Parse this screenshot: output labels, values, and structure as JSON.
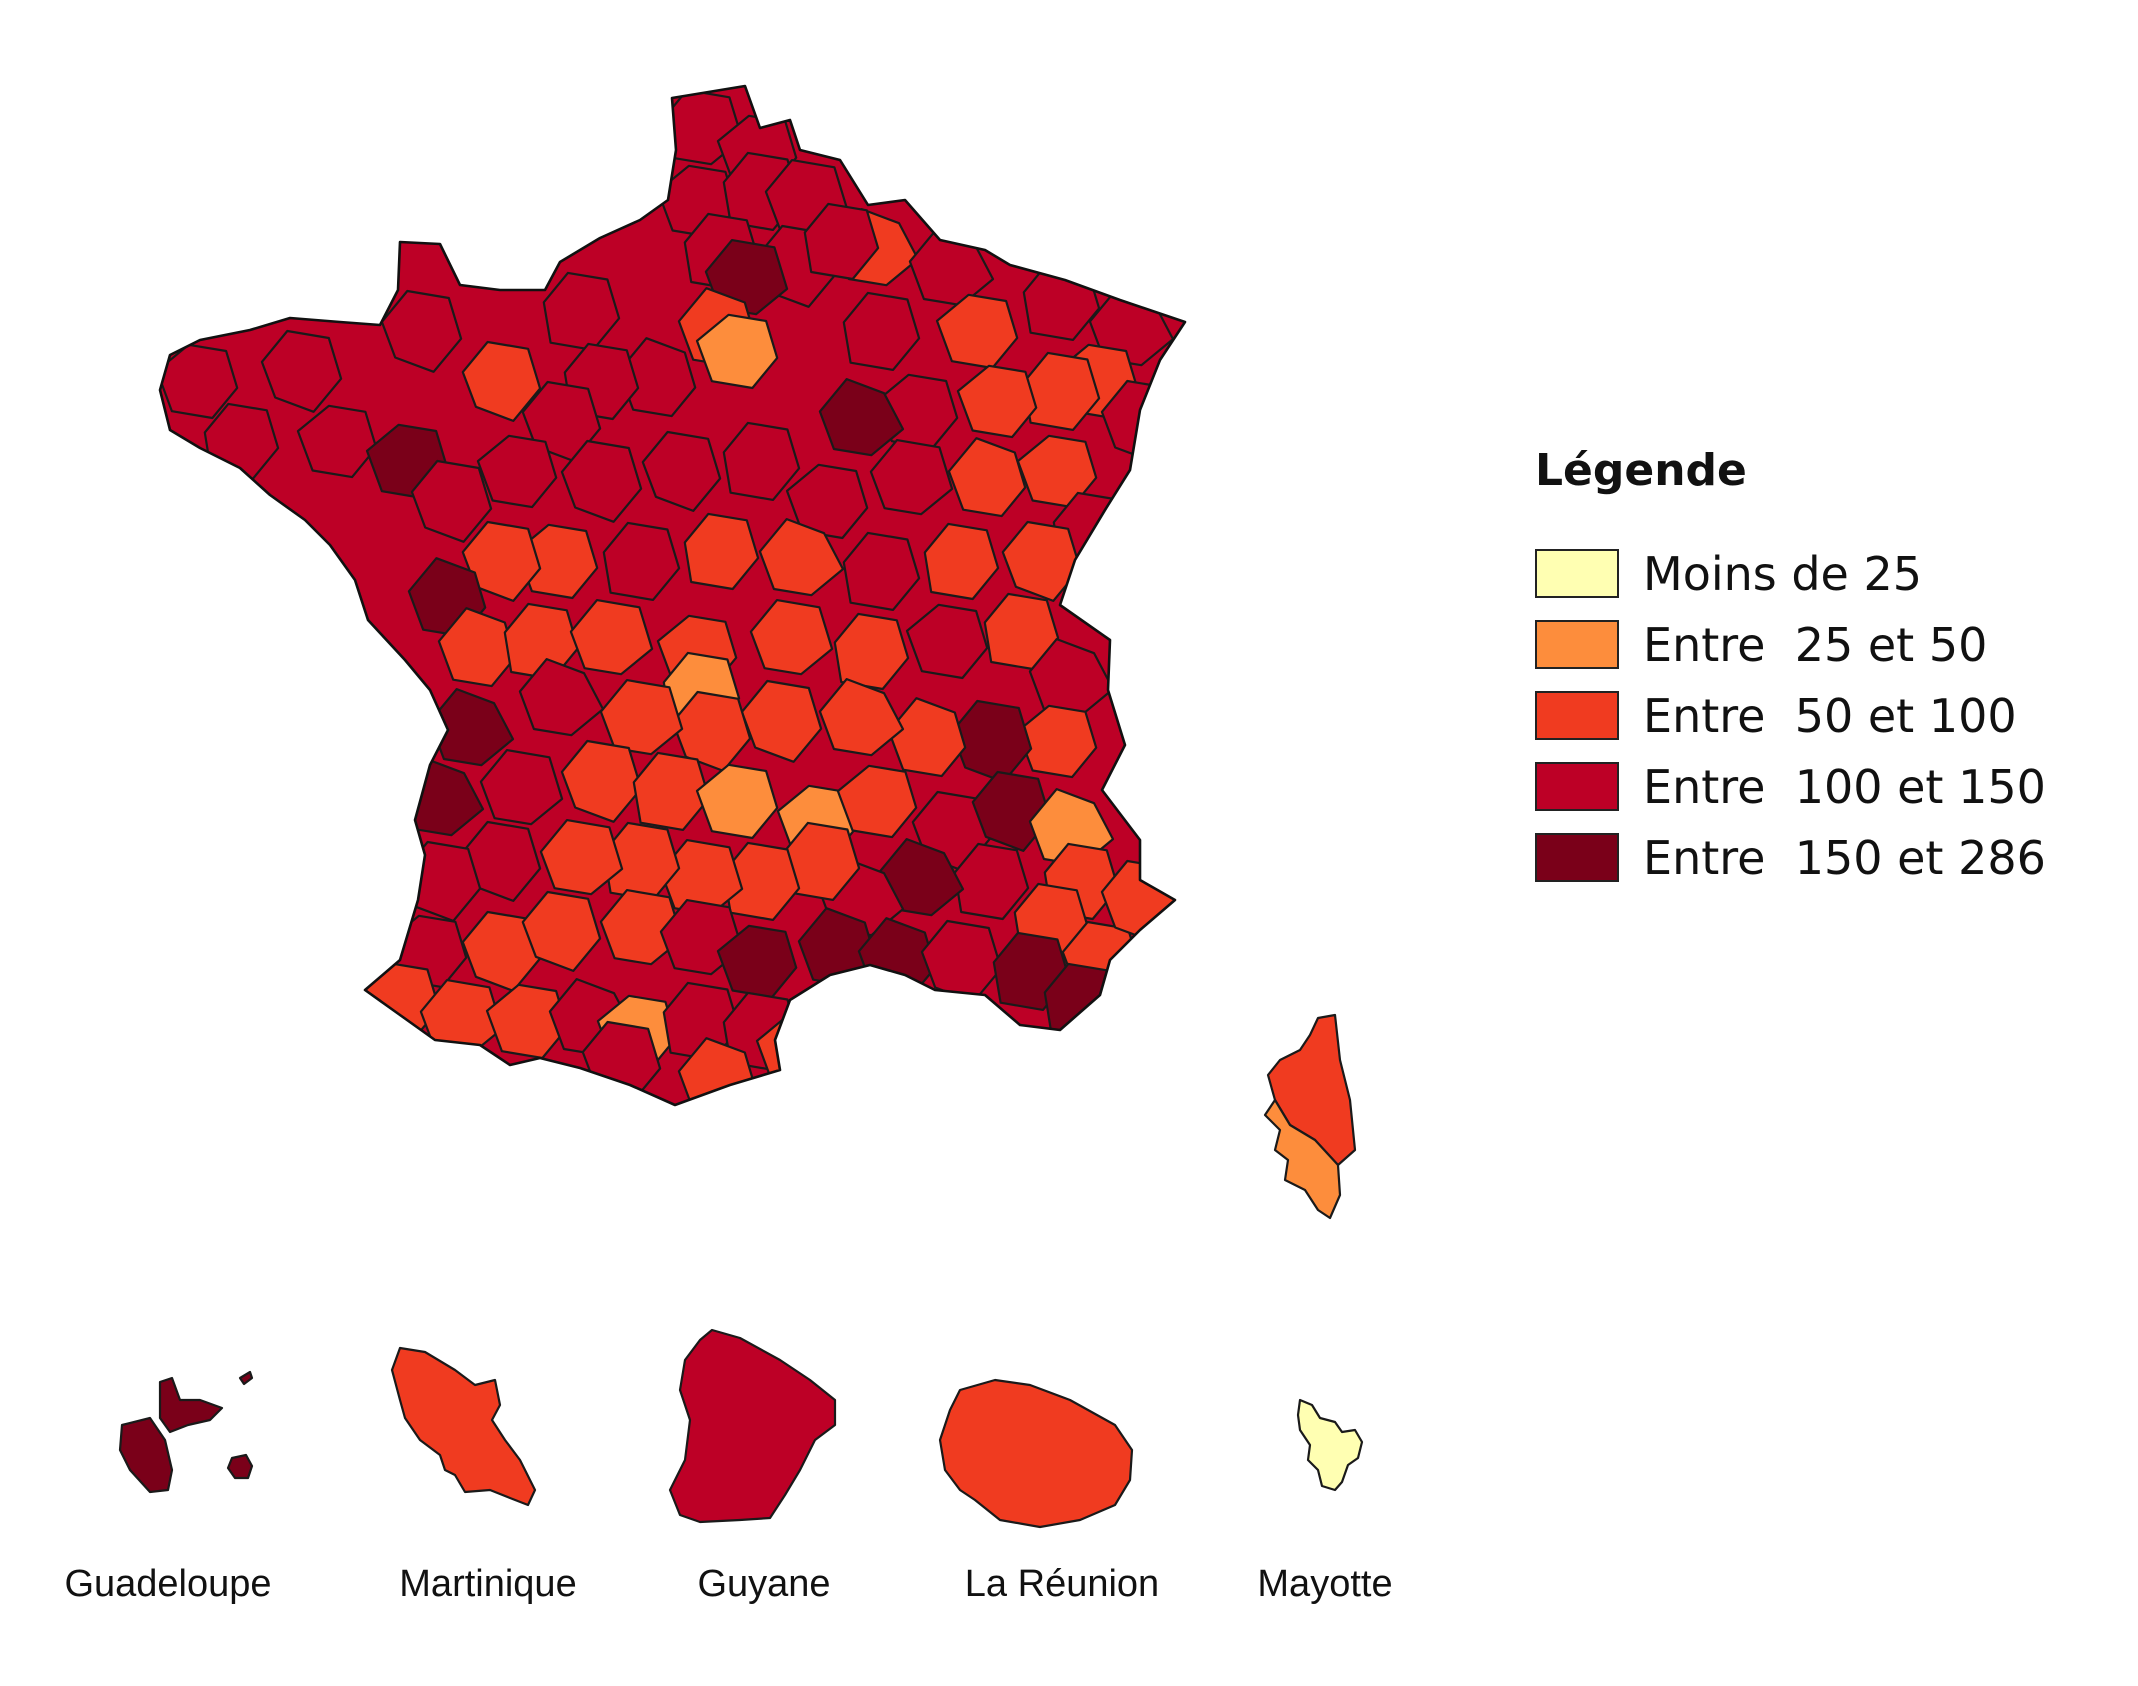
{
  "map": {
    "legend": {
      "title": "Légende",
      "items": [
        {
          "label": "Moins de 25",
          "color": "#ffffb2"
        },
        {
          "label": "Entre  25 et 50",
          "color": "#fd8d3c"
        },
        {
          "label": "Entre  50 et 100",
          "color": "#f03b20"
        },
        {
          "label": "Entre  100 et 150",
          "color": "#bd0026"
        },
        {
          "label": "Entre  150 et 286",
          "color": "#7a0019"
        }
      ]
    },
    "overseas": [
      {
        "name": "Guadeloupe",
        "class_index": 4
      },
      {
        "name": "Martinique",
        "class_index": 2
      },
      {
        "name": "Guyane",
        "class_index": 3
      },
      {
        "name": "La Réunion",
        "class_index": 2
      },
      {
        "name": "Mayotte",
        "class_index": 0
      }
    ]
  }
}
